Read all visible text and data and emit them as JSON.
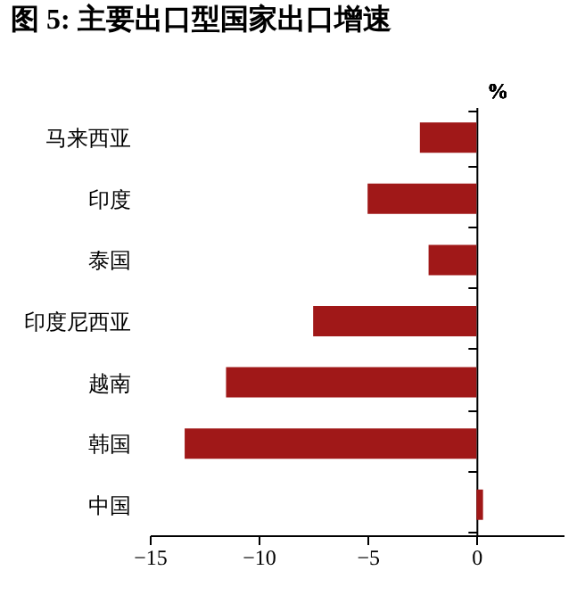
{
  "chart_data": {
    "type": "bar",
    "orientation": "horizontal",
    "title": "图 5: 主要出口型国家出口增速",
    "annotations": [
      "%"
    ],
    "categories": [
      "马来西亚",
      "印度",
      "泰国",
      "印度尼西亚",
      "越南",
      "韩国",
      "中国"
    ],
    "values": [
      -2.6,
      -5.0,
      -2.2,
      -7.5,
      -11.5,
      -13.4,
      0.3
    ],
    "color": "#a01818",
    "xlim": [
      -15,
      4
    ],
    "xticks": [
      -15,
      -10,
      -5,
      0
    ]
  }
}
